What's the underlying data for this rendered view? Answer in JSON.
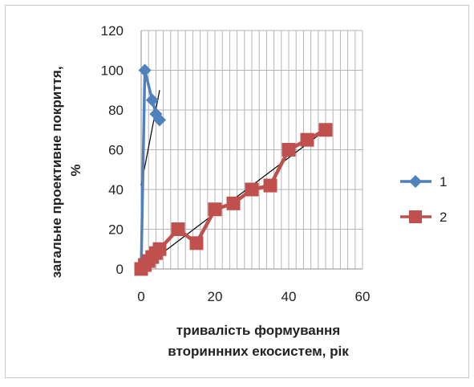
{
  "chart_data": {
    "type": "scatter",
    "title": "",
    "xlabel_lines": [
      "тривалість формування",
      "вториннних екосистем, рік"
    ],
    "ylabel_lines": [
      "загальне проективне покриття,",
      "%"
    ],
    "xlim": [
      0,
      60
    ],
    "ylim": [
      0,
      120
    ],
    "x_ticks": [
      "0",
      "20",
      "40",
      "60"
    ],
    "y_ticks": [
      "0",
      "20",
      "40",
      "60",
      "80",
      "100",
      "120"
    ],
    "grid": true,
    "legend_position": "right",
    "series": [
      {
        "name": "1",
        "color": "#4F81BD",
        "marker": "diamond",
        "points": [
          [
            0,
            0
          ],
          [
            1,
            100
          ],
          [
            3,
            85
          ],
          [
            4,
            78
          ],
          [
            5,
            75
          ]
        ],
        "trendline": [
          [
            0,
            42
          ],
          [
            5,
            90
          ]
        ]
      },
      {
        "name": "2",
        "color": "#C0504D",
        "marker": "square",
        "points": [
          [
            0,
            0
          ],
          [
            1,
            2
          ],
          [
            2,
            4
          ],
          [
            3,
            6
          ],
          [
            4,
            8
          ],
          [
            5,
            10
          ],
          [
            10,
            20
          ],
          [
            15,
            13
          ],
          [
            20,
            30
          ],
          [
            25,
            33
          ],
          [
            30,
            40
          ],
          [
            35,
            42
          ],
          [
            40,
            60
          ],
          [
            45,
            65
          ],
          [
            50,
            70
          ]
        ],
        "trendline": [
          [
            0,
            0
          ],
          [
            50,
            70
          ]
        ]
      }
    ]
  }
}
